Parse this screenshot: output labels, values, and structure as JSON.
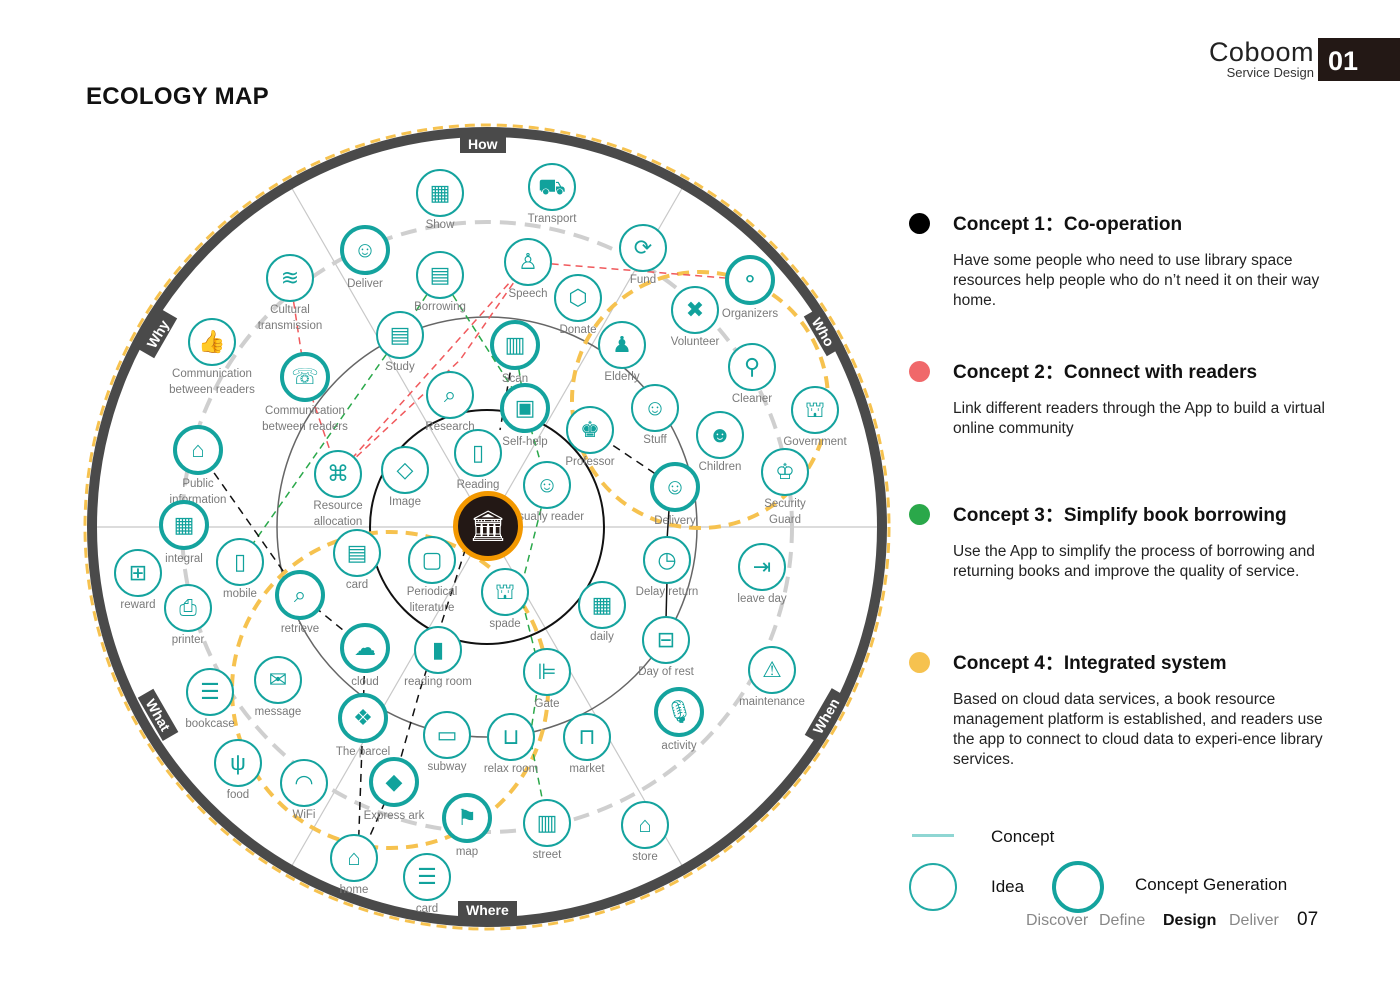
{
  "brand": {
    "name": "Coboom",
    "subtitle": "Service Design",
    "number": "01"
  },
  "page_title": "ECOLOGY MAP",
  "ring_labels": {
    "how": "How",
    "why": "Why",
    "who": "Who",
    "what": "What",
    "when": "When",
    "where": "Where"
  },
  "center": {
    "icon": "library-building-icon"
  },
  "colors": {
    "teal": "#14a39e",
    "concept1": "#000000",
    "concept2": "#f0686a",
    "concept3": "#2aa84a",
    "concept4": "#f6c24f",
    "ring": "#4a4a4a",
    "core": "#f39800"
  },
  "nodes": [
    {
      "label": "Show",
      "icon": "presentation-board-icon",
      "glyph": "▦",
      "type": "idea"
    },
    {
      "label": "Transport",
      "icon": "bus-icon",
      "glyph": "⛟",
      "type": "idea"
    },
    {
      "label": "Deliver",
      "icon": "courier-icon",
      "glyph": "☺",
      "type": "concept"
    },
    {
      "label": "Cultural\ntransmission",
      "icon": "layers-icon",
      "glyph": "≋",
      "type": "idea"
    },
    {
      "label": "Borrowing",
      "icon": "hand-document-icon",
      "glyph": "▤",
      "type": "idea"
    },
    {
      "label": "Speech",
      "icon": "podium-icon",
      "glyph": "♙",
      "type": "idea"
    },
    {
      "label": "Fund",
      "icon": "coins-cycle-icon",
      "glyph": "⟳",
      "type": "idea"
    },
    {
      "label": "Organizers",
      "icon": "balloons-icon",
      "glyph": "⚬",
      "type": "concept"
    },
    {
      "label": "Donate",
      "icon": "hand-box-icon",
      "glyph": "⬡",
      "type": "idea"
    },
    {
      "label": "Volunteer",
      "icon": "ribbon-icon",
      "glyph": "✖",
      "type": "idea"
    },
    {
      "label": "Communication\nbetween readers",
      "icon": "thumbs-up-icon",
      "glyph": "👍",
      "type": "idea"
    },
    {
      "label": "Study",
      "icon": "document-icon",
      "glyph": "▤",
      "type": "idea"
    },
    {
      "label": "Scan",
      "icon": "qr-phone-icon",
      "glyph": "▥",
      "type": "concept"
    },
    {
      "label": "Elderly",
      "icon": "elderly-person-icon",
      "glyph": "♟",
      "type": "idea"
    },
    {
      "label": "Cleaner",
      "icon": "broom-icon",
      "glyph": "⚲",
      "type": "idea"
    },
    {
      "label": "Communication\nbetween readers",
      "icon": "chat-bubble-icon",
      "glyph": "☏",
      "type": "concept"
    },
    {
      "label": "Research",
      "icon": "book-search-icon",
      "glyph": "⌕",
      "type": "idea"
    },
    {
      "label": "Self-help",
      "icon": "self-service-terminal-icon",
      "glyph": "▣",
      "type": "concept"
    },
    {
      "label": "Professor",
      "icon": "professor-icon",
      "glyph": "♚",
      "type": "idea"
    },
    {
      "label": "Stuff",
      "icon": "staff-person-icon",
      "glyph": "☺",
      "type": "idea"
    },
    {
      "label": "Children",
      "icon": "baby-face-icon",
      "glyph": "☻",
      "type": "idea"
    },
    {
      "label": "Government",
      "icon": "government-building-icon",
      "glyph": "⛫",
      "type": "idea"
    },
    {
      "label": "Public\ninformation",
      "icon": "tags-icon",
      "glyph": "⌂",
      "type": "concept"
    },
    {
      "label": "Reading",
      "icon": "open-book-icon",
      "glyph": "▯",
      "type": "idea"
    },
    {
      "label": "Resource\nallocation",
      "icon": "network-icon",
      "glyph": "⌘",
      "type": "idea"
    },
    {
      "label": "Image",
      "icon": "diamond-icon",
      "glyph": "◇",
      "type": "idea"
    },
    {
      "label": "Usually reader",
      "icon": "reader-icon",
      "glyph": "☺",
      "type": "idea"
    },
    {
      "label": "Delivery",
      "icon": "delivery-person-icon",
      "glyph": "☺",
      "type": "concept"
    },
    {
      "label": "Security\nGuard",
      "icon": "guard-icon",
      "glyph": "♔",
      "type": "idea"
    },
    {
      "label": "integral",
      "icon": "grid-icon",
      "glyph": "▦",
      "type": "concept"
    },
    {
      "label": "reward",
      "icon": "gift-icon",
      "glyph": "⊞",
      "type": "idea"
    },
    {
      "label": "mobile",
      "icon": "smartphone-icon",
      "glyph": "▯",
      "type": "idea"
    },
    {
      "label": "card",
      "icon": "id-card-icon",
      "glyph": "▤",
      "type": "idea"
    },
    {
      "label": "Periodical\nliterature",
      "icon": "notebook-icon",
      "glyph": "▢",
      "type": "idea"
    },
    {
      "label": "spade",
      "icon": "library-icon",
      "glyph": "⛫",
      "type": "idea"
    },
    {
      "label": "Delay return",
      "icon": "clock-return-icon",
      "glyph": "◷",
      "type": "idea"
    },
    {
      "label": "leave day",
      "icon": "exit-door-icon",
      "glyph": "⇥",
      "type": "idea"
    },
    {
      "label": "printer",
      "icon": "printer-icon",
      "glyph": "⎙",
      "type": "idea"
    },
    {
      "label": "retrieve",
      "icon": "monitor-search-icon",
      "glyph": "⌕",
      "type": "concept"
    },
    {
      "label": "daily",
      "icon": "calendar-icon",
      "glyph": "▦",
      "type": "idea"
    },
    {
      "label": "Day of rest",
      "icon": "closed-sign-icon",
      "glyph": "⊟",
      "type": "idea"
    },
    {
      "label": "cloud",
      "icon": "cloud-sync-icon",
      "glyph": "☁",
      "type": "concept"
    },
    {
      "label": "reading room",
      "icon": "book-icon",
      "glyph": "▮",
      "type": "idea"
    },
    {
      "label": "Gate",
      "icon": "gate-icon",
      "glyph": "⊫",
      "type": "idea"
    },
    {
      "label": "maintenance",
      "icon": "warning-icon",
      "glyph": "⚠",
      "type": "idea"
    },
    {
      "label": "message",
      "icon": "envelope-icon",
      "glyph": "✉",
      "type": "idea"
    },
    {
      "label": "bookcase",
      "icon": "server-shelf-icon",
      "glyph": "☰",
      "type": "idea"
    },
    {
      "label": "activity",
      "icon": "microphone-icon",
      "glyph": "🎙",
      "type": "concept"
    },
    {
      "label": "The parcel",
      "icon": "open-box-icon",
      "glyph": "❖",
      "type": "concept"
    },
    {
      "label": "subway",
      "icon": "train-icon",
      "glyph": "▭",
      "type": "idea"
    },
    {
      "label": "relax room",
      "icon": "sofa-icon",
      "glyph": "⊔",
      "type": "idea"
    },
    {
      "label": "market",
      "icon": "basket-icon",
      "glyph": "⊓",
      "type": "idea"
    },
    {
      "label": "food",
      "icon": "spoon-fork-icon",
      "glyph": "ψ",
      "type": "idea"
    },
    {
      "label": "WiFi",
      "icon": "wifi-icon",
      "glyph": "◠",
      "type": "idea"
    },
    {
      "label": "Express ark",
      "icon": "cube-icon",
      "glyph": "◆",
      "type": "concept"
    },
    {
      "label": "map",
      "icon": "map-pin-icon",
      "glyph": "⚑",
      "type": "concept"
    },
    {
      "label": "street",
      "icon": "buildings-icon",
      "glyph": "▥",
      "type": "idea"
    },
    {
      "label": "store",
      "icon": "storefront-icon",
      "glyph": "⌂",
      "type": "idea"
    },
    {
      "label": "home",
      "icon": "house-icon",
      "glyph": "⌂",
      "type": "idea"
    },
    {
      "label": "card",
      "icon": "cabinet-card-icon",
      "glyph": "☰",
      "type": "idea"
    }
  ],
  "concepts": [
    {
      "title": "Concept 1：Co-operation",
      "body": "Have some people who need to use library space resources help people who do n’t need it on their way home."
    },
    {
      "title": "Concept 2：Connect with readers",
      "body": "Link different readers through the App to build a virtual online community"
    },
    {
      "title": "Concept 3：Simplify book borrowing",
      "body": "Use the App to simplify the process of borrowing and returning books and improve the quality of service."
    },
    {
      "title": "Concept 4：Integrated system",
      "body": "Based on cloud data services, a book resource management platform is established, and readers use the app to connect to cloud data to experi-ence library services."
    }
  ],
  "legend": {
    "concept": "Concept",
    "idea": "Idea",
    "concept_generation": "Concept Generation"
  },
  "phases": [
    "Discover",
    "Define",
    "Design",
    "Deliver"
  ],
  "active_phase": "Design",
  "page_number": "07"
}
